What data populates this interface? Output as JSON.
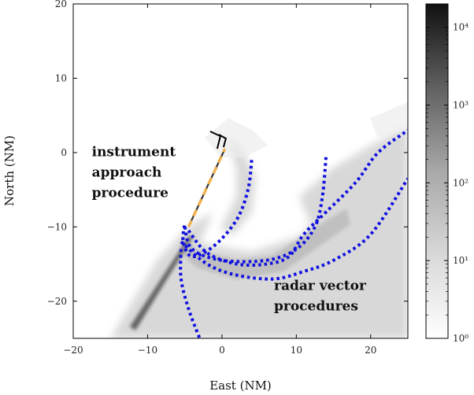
{
  "chart_data": {
    "type": "heatmap",
    "title": "",
    "xlabel": "East (NM)",
    "ylabel": "North (NM)",
    "xlim": [
      -20,
      25
    ],
    "ylim": [
      -25,
      20
    ],
    "xticks": [
      -20,
      -10,
      0,
      10,
      20
    ],
    "yticks": [
      -20,
      -10,
      0,
      10,
      20
    ],
    "grid": false,
    "colorbar": {
      "scale": "log",
      "range": [
        1,
        20000
      ],
      "ticks": [
        {
          "value": 1,
          "label": "10⁰"
        },
        {
          "value": 10,
          "label": "10¹"
        },
        {
          "value": 100,
          "label": "10²"
        },
        {
          "value": 1000,
          "label": "10³"
        },
        {
          "value": 10000,
          "label": "10⁴"
        }
      ],
      "colormap": "white-to-black"
    },
    "annotations": [
      {
        "lines": [
          "instrument",
          "approach",
          "procedure"
        ],
        "x": -17.5,
        "y": -0.5
      },
      {
        "lines": [
          "radar vector",
          "procedures"
        ],
        "x": 7,
        "y": -18.5
      }
    ],
    "approach_path": {
      "color": "#f0b050",
      "style": "dashed",
      "points": [
        [
          -4.5,
          -10
        ],
        [
          0.4,
          0.5
        ]
      ]
    },
    "dotted_tracks": {
      "color": "#1010e0",
      "style": "dotted",
      "series": [
        {
          "points": [
            [
              4,
              -1
            ],
            [
              3.5,
              -5
            ],
            [
              2,
              -9
            ],
            [
              -1,
              -12.5
            ],
            [
              -4,
              -14
            ],
            [
              -5.2,
              -12
            ],
            [
              -5,
              -9.5
            ]
          ]
        },
        {
          "points": [
            [
              -5,
              -10
            ],
            [
              -4,
              -13
            ],
            [
              0,
              -14.5
            ],
            [
              6,
              -14.5
            ],
            [
              10,
              -13
            ],
            [
              12.5,
              -10
            ],
            [
              13.5,
              -6
            ],
            [
              14,
              -0.5
            ]
          ]
        },
        {
          "points": [
            [
              -5.5,
              -12
            ],
            [
              -2,
              -15
            ],
            [
              2,
              -16.5
            ],
            [
              7,
              -17
            ],
            [
              11,
              -16
            ],
            [
              15,
              -14.5
            ],
            [
              20,
              -11
            ],
            [
              25,
              -3.5
            ]
          ]
        },
        {
          "points": [
            [
              -4.5,
              -10.5
            ],
            [
              -2,
              -13.5
            ],
            [
              2,
              -15
            ],
            [
              6,
              -15
            ],
            [
              9,
              -14
            ],
            [
              11,
              -11
            ],
            [
              14,
              -8
            ],
            [
              18,
              -4
            ],
            [
              21,
              0
            ],
            [
              25,
              3
            ]
          ]
        },
        {
          "points": [
            [
              -5.5,
              -13
            ],
            [
              -5.5,
              -17
            ],
            [
              -4.5,
              -21
            ],
            [
              -3,
              -25
            ]
          ]
        }
      ]
    },
    "runway": {
      "points": [
        [
          0,
          2
        ],
        [
          1.2,
          -0.5
        ]
      ]
    }
  }
}
